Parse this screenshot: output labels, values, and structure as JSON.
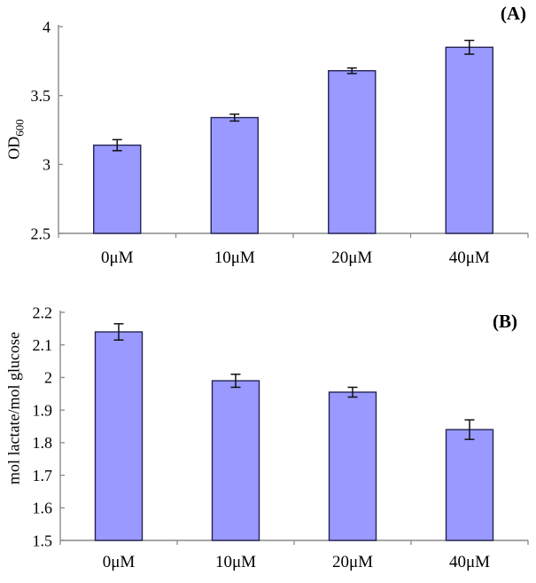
{
  "figure_title": "",
  "chart_data": [
    {
      "type": "bar",
      "panel_label": "(A)",
      "categories": [
        "0μM",
        "10μM",
        "20μM",
        "40μM"
      ],
      "values": [
        3.14,
        3.34,
        3.68,
        3.85
      ],
      "errors": [
        0.04,
        0.025,
        0.02,
        0.05
      ],
      "ylabel": "OD600",
      "ylabel_main": "OD",
      "ylabel_sub": "600",
      "xlabel": "",
      "ylim": [
        2.5,
        4.0
      ],
      "yticks": [
        2.5,
        3,
        3.5,
        4
      ],
      "ytick_labels": [
        "2.5",
        "3",
        "3.5",
        "4"
      ],
      "grid": false,
      "legend": "none",
      "bar_fill": "#9999ff",
      "bar_border": "#232355",
      "error_color": "#111111",
      "axis_color": "#8a8a8a"
    },
    {
      "type": "bar",
      "panel_label": "(B)",
      "categories": [
        "0μM",
        "10μM",
        "20μM",
        "40μM"
      ],
      "values": [
        2.14,
        1.99,
        1.955,
        1.84
      ],
      "errors": [
        0.025,
        0.02,
        0.015,
        0.03
      ],
      "ylabel": "mol lactate/mol glucose",
      "xlabel": "",
      "ylim": [
        1.5,
        2.2
      ],
      "yticks": [
        1.5,
        1.6,
        1.7,
        1.8,
        1.9,
        2.0,
        2.1,
        2.2
      ],
      "ytick_labels": [
        "1.5",
        "1.6",
        "1.7",
        "1.8",
        "1.9",
        "2",
        "2.1",
        "2.2"
      ],
      "grid": false,
      "legend": "none",
      "bar_fill": "#9999ff",
      "bar_border": "#232355",
      "error_color": "#111111",
      "axis_color": "#8a8a8a"
    }
  ]
}
